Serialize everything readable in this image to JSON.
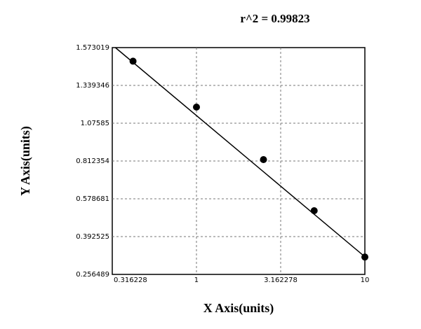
{
  "chart_data": {
    "type": "scatter",
    "title": "r^2 = 0.99823",
    "x_label": "X Axis(units)",
    "y_label": "Y Axis(units)",
    "x_scale": "log",
    "xlim": [
      0.316228,
      10
    ],
    "xticks": [
      0.316228,
      1,
      3.162278,
      10
    ],
    "ylim": [
      0.256489,
      1.573019
    ],
    "yticks": [
      0.256489,
      0.392525,
      0.578681,
      0.812354,
      1.07585,
      1.339346,
      1.573019
    ],
    "grid": true,
    "series": [
      {
        "color": "#000000",
        "x": [
          0.42,
          1,
          2.5,
          5,
          10
        ],
        "values": [
          1.489,
          1.188,
          0.822,
          0.52,
          0.319
        ]
      }
    ],
    "fit": {
      "color": "#000000",
      "x": [
        0.33,
        10
      ],
      "values": [
        1.573019,
        0.32
      ]
    }
  }
}
